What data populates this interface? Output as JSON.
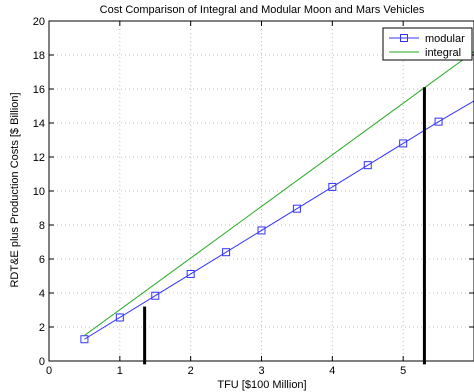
{
  "chart_data": {
    "type": "line",
    "title": "Cost Comparison of Integral and Modular Moon and Mars Vehicles",
    "xlabel": "TFU [$100 Million]",
    "ylabel": "RDT&E plus Production Costs [$ Billion]",
    "xlim": [
      0,
      6
    ],
    "ylim": [
      0,
      20
    ],
    "xticks": [
      0,
      1,
      2,
      3,
      4,
      5
    ],
    "yticks": [
      0,
      2,
      4,
      6,
      8,
      10,
      12,
      14,
      16,
      18,
      20
    ],
    "grid": true,
    "grid_style": "dotted",
    "legend_position": "top-right",
    "series": [
      {
        "name": "modular",
        "color": "#3333ff",
        "marker": "square",
        "x": [
          0.5,
          1.0,
          1.5,
          2.0,
          2.5,
          3.0,
          3.5,
          4.0,
          4.5,
          5.0,
          5.5,
          6.0
        ],
        "y": [
          1.28,
          2.56,
          3.84,
          5.12,
          6.4,
          7.68,
          8.96,
          10.24,
          11.52,
          12.8,
          14.08,
          15.3
        ],
        "marker_x": [
          0.5,
          1.0,
          1.5,
          2.0,
          2.5,
          3.0,
          3.5,
          4.0,
          4.5,
          5.0,
          5.5
        ]
      },
      {
        "name": "integral",
        "color": "#22aa22",
        "marker": "none",
        "x": [
          0.5,
          6.0
        ],
        "y": [
          1.5,
          18.2
        ]
      }
    ],
    "annotations": [
      {
        "type": "vertical-bar",
        "x": 1.35,
        "y_from": -0.2,
        "y_to": 3.2,
        "color": "#000000"
      },
      {
        "type": "vertical-bar",
        "x": 5.3,
        "y_from": -0.2,
        "y_to": 16.1,
        "color": "#000000"
      }
    ]
  }
}
